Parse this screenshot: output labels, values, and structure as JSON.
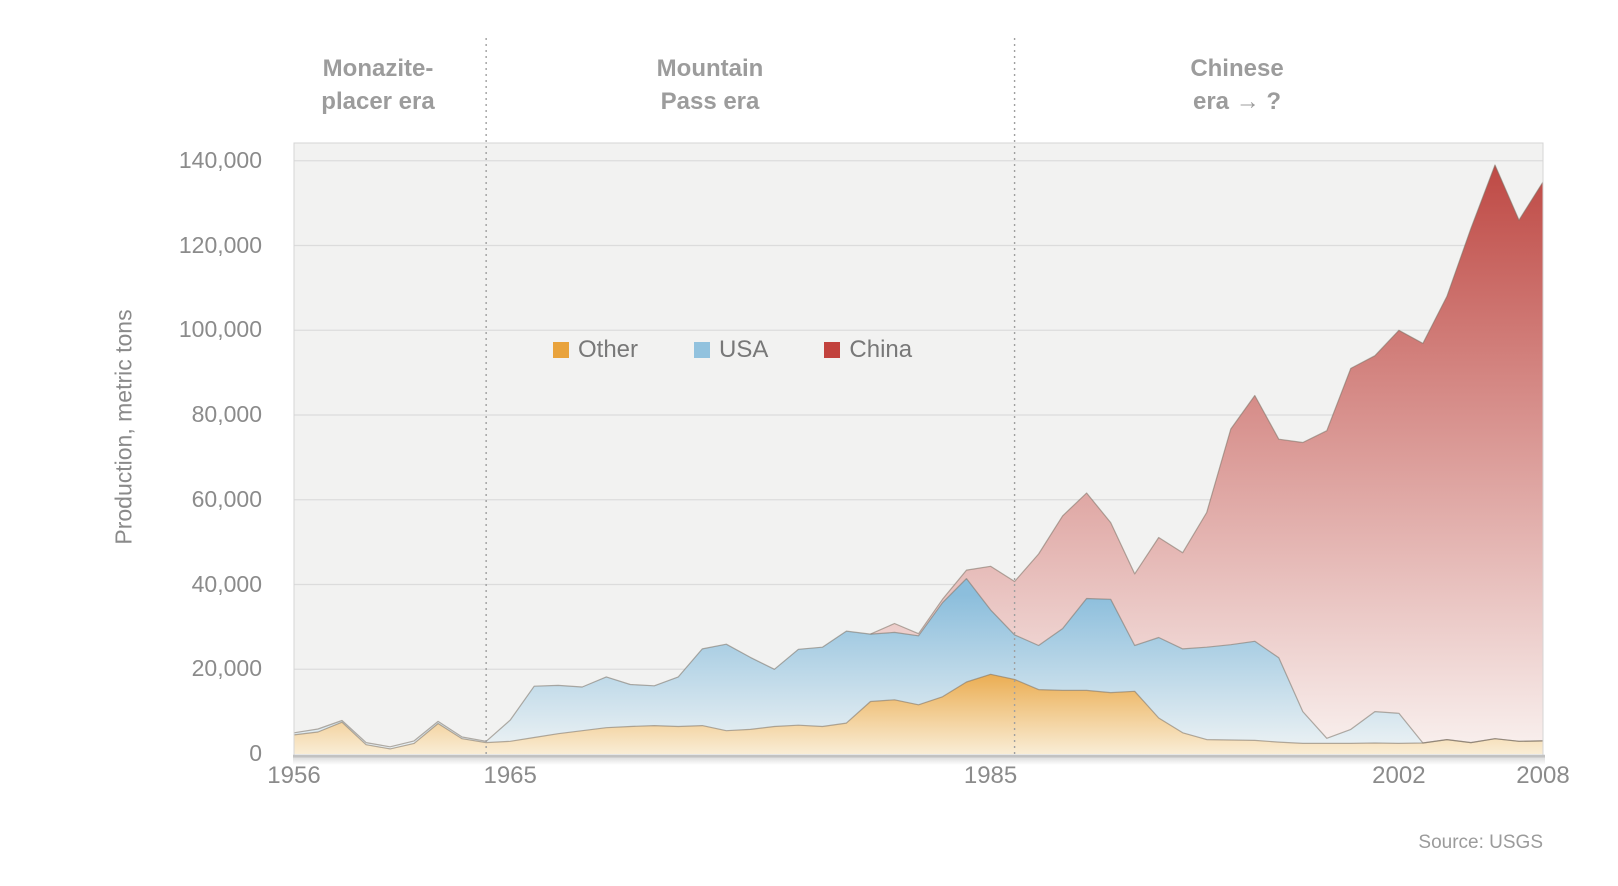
{
  "y_axis": {
    "title": "Production, metric tons",
    "tick_values": [
      0,
      20000,
      40000,
      60000,
      80000,
      100000,
      120000,
      140000
    ],
    "tick_labels": [
      "0",
      "20,000",
      "40,000",
      "60,000",
      "80,000",
      "100,000",
      "120,000",
      "140,000"
    ]
  },
  "x_axis": {
    "tick_years": [
      1956,
      1965,
      1985,
      2002,
      2008
    ],
    "tick_labels": [
      "1956",
      "1965",
      "1985",
      "2002",
      "2008"
    ]
  },
  "eras": [
    {
      "name": "monazite",
      "lines": "Monazite-\nplacer era"
    },
    {
      "name": "mountain-pass",
      "lines": "Mountain\nPass era"
    },
    {
      "name": "chinese",
      "lines": "Chinese\nera → ?"
    }
  ],
  "legend": [
    {
      "label": "Other",
      "color": "#E9A33C"
    },
    {
      "label": "USA",
      "color": "#92C2DE"
    },
    {
      "label": "China",
      "color": "#C2423D"
    }
  ],
  "source": "Source: USGS",
  "colors": {
    "plot_background": "#F2F2F1",
    "gridline": "#DCDCDC",
    "plot_border": "#D5D5D5",
    "axis_line": "#C2C2C2",
    "divider": "#A0A0A0",
    "boundary_line": "#7A6F63",
    "other_fill_top": "#E8A23B",
    "other_fill_bottom": "#FAF0DC",
    "usa_fill_top": "#8CBEDC",
    "usa_fill_bottom": "#F0F4F5",
    "china_fill_top": "#BD4540",
    "china_fill_bottom": "#F8EEEC"
  },
  "chart_data": {
    "type": "area",
    "stacked": true,
    "title": "",
    "xlabel": "",
    "ylabel": "Production, metric tons",
    "xlim": [
      1956,
      2008
    ],
    "ylim": [
      0,
      144000
    ],
    "grid": "horizontal",
    "legend_position": "center-left inside plot",
    "era_dividers_years": [
      1964,
      1986
    ],
    "x": [
      1956,
      1957,
      1958,
      1959,
      1960,
      1961,
      1962,
      1963,
      1964,
      1965,
      1966,
      1967,
      1968,
      1969,
      1970,
      1971,
      1972,
      1973,
      1974,
      1975,
      1976,
      1977,
      1978,
      1979,
      1980,
      1981,
      1982,
      1983,
      1984,
      1985,
      1986,
      1987,
      1988,
      1989,
      1990,
      1991,
      1992,
      1993,
      1994,
      1995,
      1996,
      1997,
      1998,
      1999,
      2000,
      2001,
      2002,
      2003,
      2004,
      2005,
      2006,
      2007,
      2008
    ],
    "series": [
      {
        "name": "Other",
        "color": "#E9A33C",
        "values": [
          4500,
          5200,
          7500,
          2200,
          1200,
          2500,
          7200,
          3600,
          2700,
          3000,
          3900,
          4800,
          5500,
          6200,
          6500,
          6700,
          6500,
          6700,
          5500,
          5800,
          6500,
          6800,
          6500,
          7300,
          12400,
          12800,
          11600,
          13500,
          17000,
          18800,
          17600,
          15200,
          15000,
          15000,
          14500,
          14800,
          8500,
          5000,
          3400,
          3300,
          3200,
          2800,
          2500,
          2500,
          2500,
          2600,
          2500,
          2600,
          3400,
          2700,
          3600,
          3000,
          3100
        ]
      },
      {
        "name": "USA",
        "color": "#92C2DE",
        "values": [
          500,
          700,
          400,
          500,
          500,
          600,
          500,
          400,
          300,
          5000,
          12100,
          11400,
          10300,
          12000,
          9900,
          9400,
          11700,
          18100,
          20400,
          17000,
          13500,
          17900,
          18700,
          21700,
          15900,
          15900,
          16300,
          22200,
          24400,
          15200,
          10500,
          10400,
          14600,
          21700,
          22000,
          10800,
          19000,
          19800,
          21800,
          22500,
          23400,
          19900,
          7500,
          1200,
          3300,
          7400,
          7100,
          0,
          0,
          0,
          0,
          0,
          0
        ]
      },
      {
        "name": "China",
        "color": "#C2423D",
        "values": [
          0,
          0,
          0,
          0,
          0,
          0,
          0,
          0,
          0,
          0,
          0,
          0,
          0,
          0,
          0,
          0,
          0,
          0,
          0,
          0,
          0,
          0,
          0,
          0,
          0,
          2100,
          500,
          800,
          2000,
          10300,
          12600,
          21600,
          26600,
          24900,
          18100,
          16900,
          23600,
          22700,
          31800,
          50900,
          58000,
          51600,
          63500,
          72600,
          85200,
          84000,
          90400,
          94300,
          104600,
          121300,
          135400,
          123000,
          131900
        ]
      }
    ]
  }
}
